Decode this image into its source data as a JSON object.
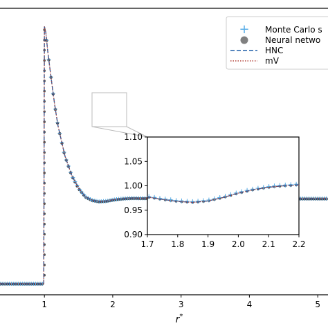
{
  "chart_data": [
    {
      "type": "line",
      "role": "main",
      "xlabel": "r*",
      "ylabel": "",
      "xticks": [
        "1",
        "2",
        "3",
        "4",
        "5"
      ],
      "xlim": [
        0.35,
        5.15
      ],
      "ylim": [
        0.0,
        3.2
      ],
      "grid": false,
      "legend_position": "top-right",
      "legend": [
        {
          "label": "Monte Carlo s",
          "marker": "plus",
          "color": "#5aaee8"
        },
        {
          "label": "Neural netwo",
          "marker": "circle",
          "color": "#808080"
        },
        {
          "label": "HNC",
          "marker": "dashed-line",
          "color": "#1f5fa8"
        },
        {
          "label": "mV",
          "marker": "dotted-line",
          "color": "#b3433a"
        }
      ],
      "series": [
        {
          "name": "HNC",
          "x": [
            0.35,
            0.99,
            1.0,
            1.02,
            1.05,
            1.1,
            1.15,
            1.2,
            1.3,
            1.4,
            1.5,
            1.6,
            1.7,
            1.8,
            1.9,
            2.0,
            2.1,
            2.2,
            2.3,
            2.5,
            3.0,
            3.5,
            4.0,
            4.5,
            5.0,
            5.15
          ],
          "y": [
            0.0,
            0.0,
            3.02,
            2.95,
            2.72,
            2.4,
            2.1,
            1.85,
            1.5,
            1.27,
            1.12,
            1.02,
            0.98,
            0.965,
            0.97,
            0.985,
            0.995,
            1.002,
            1.005,
            1.003,
            1.0,
            1.0,
            1.0,
            1.0,
            1.0,
            1.0
          ]
        },
        {
          "name": "mV",
          "x": [
            0.35,
            0.99,
            1.0,
            1.02,
            1.05,
            1.1,
            1.15,
            1.2,
            1.3,
            1.4,
            1.5,
            1.6,
            1.7,
            1.8,
            1.9,
            2.0,
            2.1,
            2.2,
            2.3,
            2.5,
            3.0,
            3.5,
            4.0,
            4.5,
            5.0,
            5.15
          ],
          "y": [
            0.0,
            0.0,
            3.02,
            2.95,
            2.72,
            2.4,
            2.1,
            1.85,
            1.5,
            1.27,
            1.12,
            1.02,
            0.98,
            0.965,
            0.97,
            0.985,
            0.995,
            1.002,
            1.005,
            1.003,
            1.0,
            1.0,
            1.0,
            1.0,
            1.0,
            1.0
          ]
        }
      ]
    },
    {
      "type": "line",
      "role": "inset",
      "xticks": [
        "1.7",
        "1.8",
        "1.9",
        "2.0",
        "2.1",
        "2.2"
      ],
      "yticks": [
        "0.90",
        "0.95",
        "1.00",
        "1.05",
        "1.10"
      ],
      "xlim": [
        1.7,
        2.2
      ],
      "ylim": [
        0.9,
        1.1
      ],
      "series": [
        {
          "name": "HNC",
          "x": [
            1.7,
            1.75,
            1.8,
            1.85,
            1.9,
            1.95,
            2.0,
            2.05,
            2.1,
            2.15,
            2.2
          ],
          "y": [
            0.977,
            0.972,
            0.968,
            0.966,
            0.969,
            0.976,
            0.985,
            0.992,
            0.997,
            1.0,
            1.002
          ]
        }
      ]
    }
  ]
}
